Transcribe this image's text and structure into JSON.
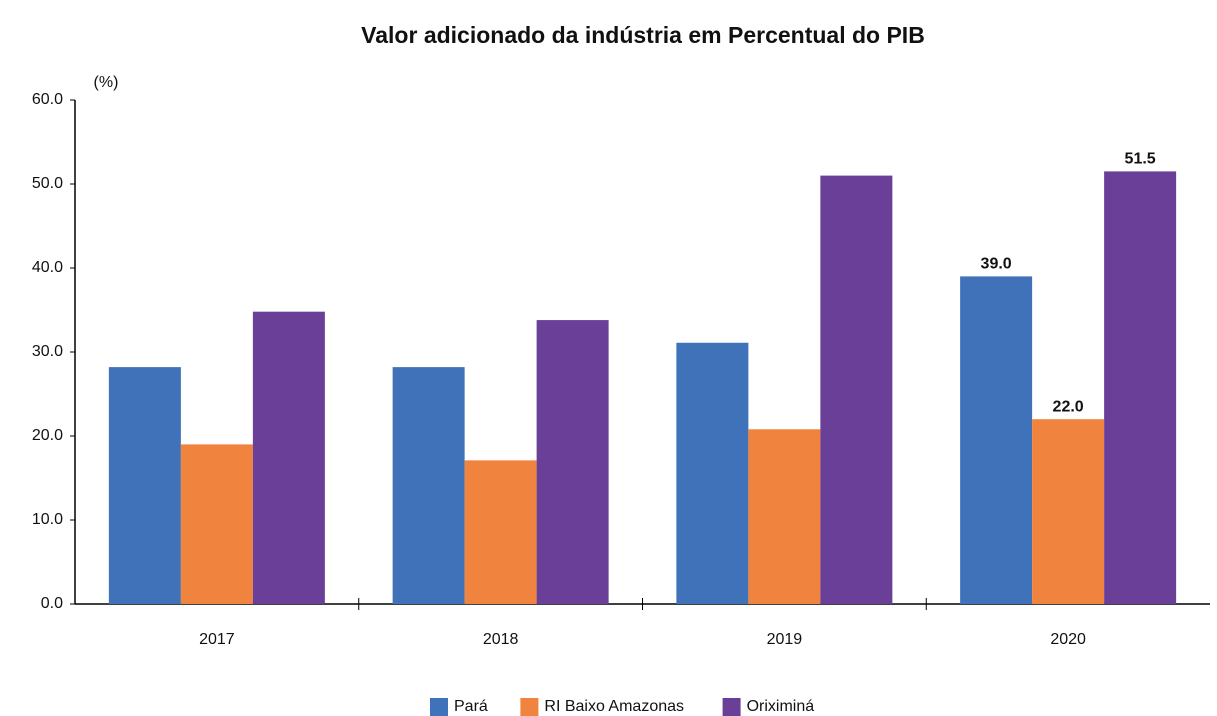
{
  "chart_data": {
    "type": "bar",
    "title": "Valor adicionado da indústria em Percentual do PIB",
    "y_label": "(%)",
    "categories": [
      "2017",
      "2018",
      "2019",
      "2020"
    ],
    "series": [
      {
        "name": "Pará",
        "color": "#3f72b9",
        "values": [
          28.2,
          28.2,
          31.1,
          39.0
        ],
        "value_labels": [
          null,
          null,
          null,
          "39.0"
        ]
      },
      {
        "name": "RI Baixo Amazonas",
        "color": "#f0833d",
        "values": [
          19.0,
          17.1,
          20.8,
          22.0
        ],
        "value_labels": [
          null,
          null,
          null,
          "22.0"
        ]
      },
      {
        "name": "Oriximiná",
        "color": "#6a3f98",
        "values": [
          34.8,
          33.8,
          51.0,
          51.5
        ],
        "value_labels": [
          null,
          null,
          null,
          "51.5"
        ]
      }
    ],
    "ylim": [
      0,
      60
    ],
    "yticks": [
      {
        "value": 0,
        "label": "0.0"
      },
      {
        "value": 10,
        "label": "10.0"
      },
      {
        "value": 20,
        "label": "20.0"
      },
      {
        "value": 30,
        "label": "30.0"
      },
      {
        "value": 40,
        "label": "40.0"
      },
      {
        "value": 50,
        "label": "50.0"
      },
      {
        "value": 60,
        "label": "60.0"
      }
    ],
    "grid": false,
    "legend": "bottom"
  }
}
